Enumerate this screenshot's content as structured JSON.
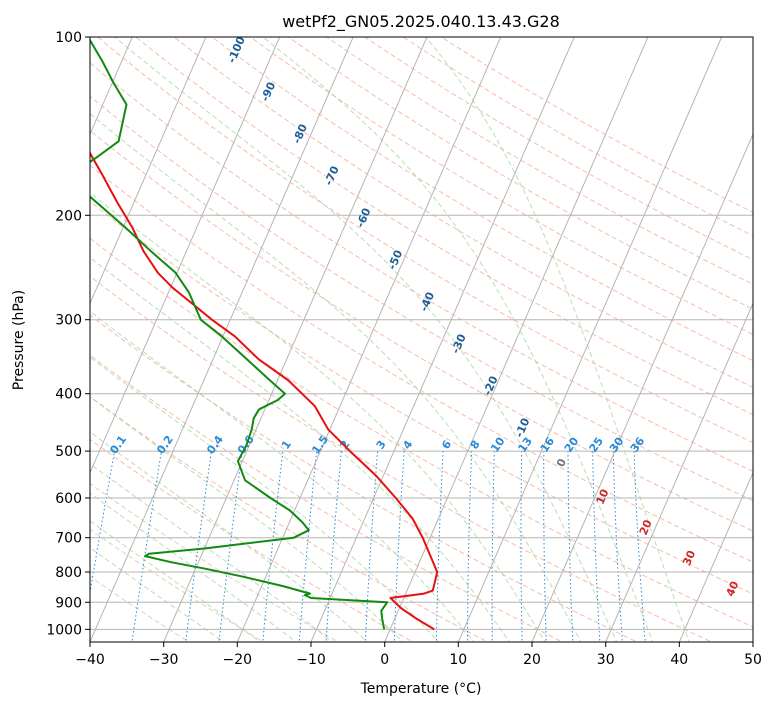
{
  "chart_data": {
    "type": "line",
    "subtype": "skew-t-log-p",
    "title": "wetPf2_GN05.2025.040.13.43.G28",
    "xlabel": "Temperature (°C)",
    "ylabel": "Pressure (hPa)",
    "xlim": [
      -40,
      50
    ],
    "ylim": [
      1050,
      100
    ],
    "y_scale": "log",
    "skew": 35,
    "grid": true,
    "x_ticks": [
      -40,
      -30,
      -20,
      -10,
      0,
      10,
      20,
      30,
      40,
      50
    ],
    "y_ticks": [
      100,
      200,
      300,
      400,
      500,
      600,
      700,
      800,
      900,
      1000
    ],
    "isotherm_labels": [
      "-100",
      "-90",
      "-80",
      "-70",
      "-60",
      "-50",
      "-40",
      "-30",
      "-20",
      "-10",
      "0",
      "10",
      "20",
      "30",
      "40"
    ],
    "isotherm_label_values": [
      -100,
      -90,
      -80,
      -70,
      -60,
      -50,
      -40,
      -30,
      -20,
      -10,
      0,
      10,
      20,
      30,
      40
    ],
    "mixing_ratio_labels": [
      "0.1",
      "0.2",
      "0.4",
      "0.6",
      "1",
      "1.5",
      "2",
      "3",
      "4",
      "6",
      "8",
      "10",
      "13",
      "16",
      "20",
      "25",
      "30",
      "36"
    ],
    "mixing_ratio_values": [
      0.1,
      0.2,
      0.4,
      0.6,
      1,
      1.5,
      2,
      3,
      4,
      6,
      8,
      10,
      13,
      16,
      20,
      25,
      30,
      36
    ],
    "series": [
      {
        "kind": "temperature",
        "color": "#e81010",
        "pressure": [
          1000,
          960,
          920,
          885,
          870,
          860,
          800,
          700,
          650,
          600,
          550,
          500,
          460,
          420,
          380,
          350,
          320,
          300,
          280,
          265,
          250,
          230,
          210,
          190,
          170,
          150,
          140,
          130,
          120,
          110,
          100
        ],
        "temperature": [
          6,
          3,
          0.2,
          -1.8,
          2.5,
          3.5,
          3,
          -1,
          -3.5,
          -7,
          -11,
          -16,
          -20.2,
          -23.4,
          -28.5,
          -33.8,
          -38.4,
          -42.5,
          -46.5,
          -49.7,
          -52.6,
          -55.8,
          -58.7,
          -62.3,
          -66.1,
          -70.5,
          -72.5,
          -75.2,
          -77.8,
          -80.7,
          -84
        ]
      },
      {
        "kind": "dewpoint",
        "color": "#128a12",
        "pressure": [
          1000,
          960,
          930,
          900,
          885,
          875,
          870,
          845,
          815,
          790,
          770,
          752,
          745,
          730,
          700,
          680,
          660,
          630,
          600,
          560,
          520,
          490,
          460,
          440,
          425,
          410,
          400,
          380,
          350,
          320,
          300,
          270,
          250,
          230,
          210,
          195,
          185,
          175,
          168,
          160,
          150,
          130,
          120,
          110,
          100
        ],
        "temperature": [
          -0.8,
          -1.7,
          -2.3,
          -2,
          -12.6,
          -13.6,
          -13,
          -17.1,
          -23,
          -28.6,
          -33.7,
          -37.6,
          -37.2,
          -30,
          -18.5,
          -16.9,
          -18.2,
          -20.6,
          -24,
          -28.5,
          -30.6,
          -30.4,
          -30.6,
          -31,
          -30.8,
          -28.8,
          -28.2,
          -31,
          -35.4,
          -40.2,
          -44,
          -47.2,
          -50.2,
          -54.8,
          -59.6,
          -63.7,
          -66.6,
          -69,
          -69.6,
          -67.8,
          -65.7,
          -66.8,
          -69.7,
          -72.6,
          -76
        ]
      }
    ]
  }
}
